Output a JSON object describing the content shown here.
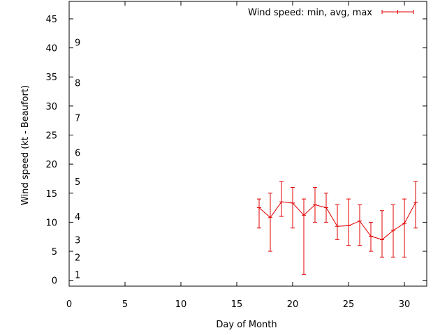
{
  "chart_data": {
    "type": "line",
    "ylabel": "Wind speed (kt - Beaufort)",
    "xlabel": "Day of Month",
    "xlim": [
      0,
      32
    ],
    "ylim": [
      -1,
      48
    ],
    "x_ticks": [
      0,
      5,
      10,
      15,
      20,
      25,
      30
    ],
    "y_ticks": [
      0,
      5,
      10,
      15,
      20,
      25,
      30,
      35,
      40,
      45
    ],
    "beaufort_labels": [
      {
        "label": "1",
        "value": 1
      },
      {
        "label": "2",
        "value": 4
      },
      {
        "label": "3",
        "value": 7
      },
      {
        "label": "4",
        "value": 11
      },
      {
        "label": "5",
        "value": 17
      },
      {
        "label": "6",
        "value": 22
      },
      {
        "label": "7",
        "value": 28
      },
      {
        "label": "8",
        "value": 34
      },
      {
        "label": "9",
        "value": 41
      }
    ],
    "legend_position": "top-right",
    "series": [
      {
        "name": "Wind speed: min, avg, max",
        "color": "#e00000",
        "x": [
          17,
          18,
          19,
          20,
          21,
          22,
          23,
          24,
          25,
          26,
          27,
          28,
          29,
          30,
          31
        ],
        "avg": [
          12.5,
          10.8,
          13.5,
          13.3,
          11.2,
          13.0,
          12.5,
          9.3,
          9.4,
          10.2,
          7.6,
          7.0,
          8.6,
          9.8,
          13.4
        ],
        "min": [
          9,
          5,
          11,
          9,
          1,
          10,
          10,
          7,
          6,
          6,
          5,
          4,
          4,
          4,
          9
        ],
        "max": [
          14,
          15,
          17,
          16,
          14,
          16,
          15,
          13,
          14,
          13,
          10,
          12,
          13,
          14,
          17
        ]
      }
    ]
  }
}
